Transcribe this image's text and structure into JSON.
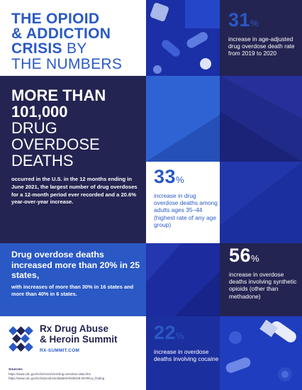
{
  "title": {
    "line1": "THE OPIOID",
    "line2": "& ADDICTION",
    "line3_bold": "CRISIS",
    "line3_rest": " BY",
    "line4": "THE NUMBERS"
  },
  "stats": {
    "s31": {
      "number": "31",
      "unit": "%",
      "text": "increase in age-adjusted drug overdose death rate from 2019 to 2020"
    },
    "s33": {
      "number": "33",
      "unit": "%",
      "text": "increase in drug overdose deaths among adults ages 35–44 (highest rate of any age group)"
    },
    "s56": {
      "number": "56",
      "unit": "%",
      "text": "increase in overdose deaths involving synthetic opioids (other than methadone)"
    },
    "s22": {
      "number": "22",
      "unit": "%",
      "text": "increase in overdose deaths involving cocaine"
    }
  },
  "headline": {
    "line1": "MORE THAN",
    "line2": "101,000",
    "line3": "DRUG",
    "line4": "OVERDOSE",
    "line5": "DEATHS",
    "text": "occurred in the U.S. in the 12 months ending in June 2021, the largest number of drug overdoses for a 12-month period ever recorded and a 20.6% year-over-year increase."
  },
  "states": {
    "heading": "Drug overdose deaths increased more than 20% in 25 states,",
    "text": "with increases of more than 30% in 16 states and more than 40% in 6 states."
  },
  "logo": {
    "name_line1": "Rx Drug Abuse",
    "name_line2": "& Heroin Summit",
    "url": "RX-SUMMIT.COM"
  },
  "sources": {
    "heading": "Sources:",
    "line1": "https://www.cdc.gov/nchs/nvss/vsrr/drug-overdose-data.htm",
    "line2": "https://www.cdc.gov/nchs/products/databriefs/db428.htm#Key_finding"
  },
  "colors": {
    "navy": "#242452",
    "blue": "#2a59c5",
    "deep_blue": "#1c2f9e"
  },
  "icons": {
    "logo": "rx-summit-logo-icon",
    "photos": "pills-photo"
  }
}
